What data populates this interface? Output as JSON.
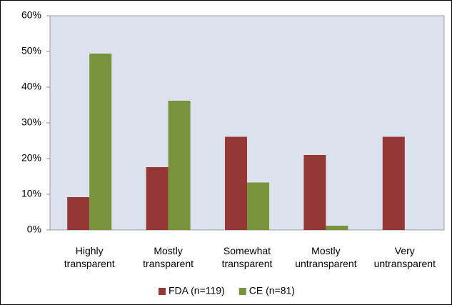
{
  "chart_data": {
    "type": "bar",
    "categories": [
      "Highly transparent",
      "Mostly transparent",
      "Somewhat transparent",
      "Mostly untransparent",
      "Very untransparent"
    ],
    "series": [
      {
        "name": "FDA (n=119)",
        "color": "#953735",
        "values": [
          9.2,
          17.6,
          26.1,
          21.0,
          26.1
        ]
      },
      {
        "name": "CE (n=81)",
        "color": "#77933c",
        "values": [
          49.4,
          36.2,
          13.3,
          1.2,
          0
        ]
      }
    ],
    "ylim": [
      0,
      60
    ],
    "yticks": [
      {
        "value": 0,
        "label": "0%"
      },
      {
        "value": 10,
        "label": "10%"
      },
      {
        "value": 20,
        "label": "20%"
      },
      {
        "value": 30,
        "label": "30%"
      },
      {
        "value": 40,
        "label": "40%"
      },
      {
        "value": 50,
        "label": "50%"
      },
      {
        "value": 60,
        "label": "60%"
      }
    ],
    "grid": false,
    "legend": "bottom"
  }
}
